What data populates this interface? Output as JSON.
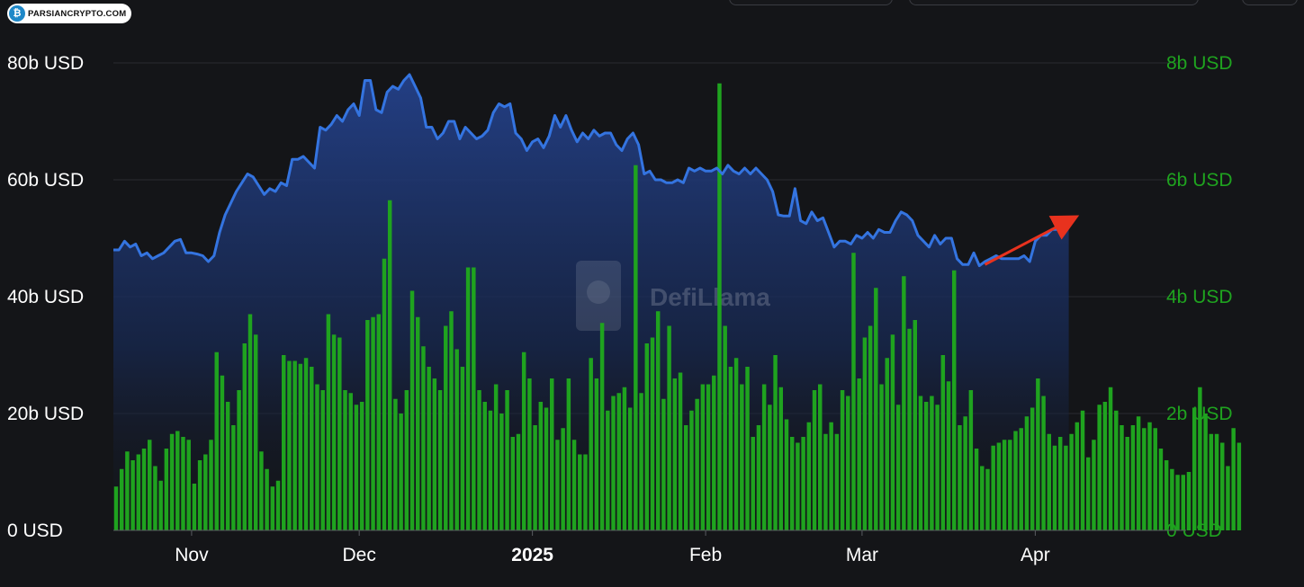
{
  "brand": {
    "logo_text": "PARSIANCRYPTO.COM",
    "watermark": "DefiLlama"
  },
  "chart_data": {
    "type": "bar+area",
    "title": "",
    "y_left": {
      "ticks": [
        "0 USD",
        "20b USD",
        "40b USD",
        "60b USD",
        "80b USD"
      ],
      "range": [
        0,
        80
      ],
      "unit": "billion USD",
      "color": "#ffffff"
    },
    "y_right": {
      "ticks": [
        "0 USD",
        "2b USD",
        "4b USD",
        "6b USD",
        "8b USD"
      ],
      "range": [
        0,
        8
      ],
      "unit": "billion USD",
      "color": "#1fa31f"
    },
    "x_ticks": [
      {
        "label": "Nov",
        "bold": false,
        "day": 14
      },
      {
        "label": "Dec",
        "bold": false,
        "day": 44
      },
      {
        "label": "2025",
        "bold": true,
        "day": 75
      },
      {
        "label": "Feb",
        "bold": false,
        "day": 106
      },
      {
        "label": "Mar",
        "bold": false,
        "day": 134
      },
      {
        "label": "Apr",
        "bold": false,
        "day": 165
      }
    ],
    "x_range_days": [
      0,
      192
    ],
    "line_series": {
      "axis": "left",
      "color": "#3474e0",
      "fill": "gradient-blue",
      "points": [
        [
          0,
          48
        ],
        [
          1,
          48
        ],
        [
          2,
          49.5
        ],
        [
          3,
          48.5
        ],
        [
          4,
          49
        ],
        [
          5,
          47
        ],
        [
          6,
          47.5
        ],
        [
          7,
          46.5
        ],
        [
          8,
          47
        ],
        [
          9,
          47.5
        ],
        [
          10,
          48.5
        ],
        [
          11,
          49.5
        ],
        [
          12,
          49.8
        ],
        [
          13,
          47.5
        ],
        [
          14,
          47.5
        ],
        [
          15,
          47.3
        ],
        [
          16,
          47
        ],
        [
          17,
          46
        ],
        [
          18,
          47
        ],
        [
          19,
          51
        ],
        [
          20,
          54
        ],
        [
          21,
          56
        ],
        [
          22,
          58
        ],
        [
          23,
          59.5
        ],
        [
          24,
          61
        ],
        [
          25,
          60.5
        ],
        [
          26,
          59
        ],
        [
          27,
          57.5
        ],
        [
          28,
          58.5
        ],
        [
          29,
          58
        ],
        [
          30,
          59.5
        ],
        [
          31,
          59
        ],
        [
          32,
          63.5
        ],
        [
          33,
          63.5
        ],
        [
          34,
          64
        ],
        [
          35,
          63
        ],
        [
          36,
          62
        ],
        [
          37,
          69
        ],
        [
          38,
          68.5
        ],
        [
          39,
          69.5
        ],
        [
          40,
          71
        ],
        [
          41,
          70
        ],
        [
          42,
          72
        ],
        [
          43,
          73
        ],
        [
          44,
          71
        ],
        [
          45,
          77
        ],
        [
          46,
          77
        ],
        [
          47,
          72
        ],
        [
          48,
          71.5
        ],
        [
          49,
          75
        ],
        [
          50,
          76
        ],
        [
          51,
          75.5
        ],
        [
          52,
          77
        ],
        [
          53,
          78
        ],
        [
          54,
          76
        ],
        [
          55,
          74
        ],
        [
          56,
          69
        ],
        [
          57,
          69
        ],
        [
          58,
          67
        ],
        [
          59,
          68
        ],
        [
          60,
          70
        ],
        [
          61,
          70
        ],
        [
          62,
          67
        ],
        [
          63,
          69
        ],
        [
          64,
          68
        ],
        [
          65,
          67
        ],
        [
          66,
          67.5
        ],
        [
          67,
          68.5
        ],
        [
          68,
          71.5
        ],
        [
          69,
          73
        ],
        [
          70,
          72.5
        ],
        [
          71,
          73
        ],
        [
          72,
          68
        ],
        [
          73,
          67
        ],
        [
          74,
          65
        ],
        [
          75,
          66.5
        ],
        [
          76,
          67
        ],
        [
          77,
          65.5
        ],
        [
          78,
          67.5
        ],
        [
          79,
          71
        ],
        [
          80,
          69
        ],
        [
          81,
          71
        ],
        [
          82,
          68.5
        ],
        [
          83,
          66.5
        ],
        [
          84,
          68
        ],
        [
          85,
          67
        ],
        [
          86,
          68.5
        ],
        [
          87,
          67.5
        ],
        [
          88,
          68
        ],
        [
          89,
          68
        ],
        [
          90,
          66
        ],
        [
          91,
          65
        ],
        [
          92,
          67
        ],
        [
          93,
          68
        ],
        [
          94,
          66
        ],
        [
          95,
          61
        ],
        [
          96,
          61.5
        ],
        [
          97,
          60
        ],
        [
          98,
          60
        ],
        [
          99,
          59.5
        ],
        [
          100,
          59.5
        ],
        [
          101,
          60
        ],
        [
          102,
          59.5
        ],
        [
          103,
          62
        ],
        [
          104,
          61.5
        ],
        [
          105,
          62
        ],
        [
          106,
          61.5
        ],
        [
          107,
          61.5
        ],
        [
          108,
          62
        ],
        [
          109,
          61
        ],
        [
          110,
          62.5
        ],
        [
          111,
          61.5
        ],
        [
          112,
          61
        ],
        [
          113,
          62
        ],
        [
          114,
          61
        ],
        [
          115,
          62
        ],
        [
          116,
          61
        ],
        [
          117,
          60
        ],
        [
          118,
          58
        ],
        [
          119,
          54
        ],
        [
          120,
          53.8
        ],
        [
          121,
          53.8
        ],
        [
          122,
          58.5
        ],
        [
          123,
          53
        ],
        [
          124,
          52.5
        ],
        [
          125,
          54.5
        ],
        [
          126,
          53
        ],
        [
          127,
          53.5
        ],
        [
          128,
          51
        ],
        [
          129,
          48.5
        ],
        [
          130,
          49.5
        ],
        [
          131,
          49.5
        ],
        [
          132,
          49
        ],
        [
          133,
          50.5
        ],
        [
          134,
          50
        ],
        [
          135,
          51
        ],
        [
          136,
          50
        ],
        [
          137,
          51.5
        ],
        [
          138,
          51
        ],
        [
          139,
          51
        ],
        [
          140,
          53
        ],
        [
          141,
          54.5
        ],
        [
          142,
          54
        ],
        [
          143,
          53
        ],
        [
          144,
          50.5
        ],
        [
          145,
          49.5
        ],
        [
          146,
          48.5
        ],
        [
          147,
          50.5
        ],
        [
          148,
          49
        ],
        [
          149,
          50
        ],
        [
          150,
          50
        ],
        [
          151,
          46.5
        ],
        [
          152,
          45.5
        ],
        [
          153,
          45.5
        ],
        [
          154,
          47.5
        ],
        [
          155,
          45.3
        ],
        [
          156,
          46
        ],
        [
          157,
          46.5
        ],
        [
          158,
          47
        ],
        [
          159,
          46.5
        ],
        [
          160,
          46.5
        ],
        [
          161,
          46.5
        ],
        [
          162,
          46.5
        ],
        [
          163,
          47
        ],
        [
          164,
          46
        ],
        [
          165,
          49.5
        ],
        [
          166,
          50.5
        ],
        [
          167,
          50.5
        ],
        [
          168,
          51.5
        ],
        [
          169,
          51.5
        ],
        [
          170,
          52.5
        ],
        [
          171,
          52
        ]
      ]
    },
    "bar_series": {
      "axis": "right",
      "color": "#1fa31f",
      "values": [
        0.75,
        1.05,
        1.35,
        1.2,
        1.3,
        1.4,
        1.55,
        1.1,
        0.85,
        1.4,
        1.65,
        1.7,
        1.6,
        1.55,
        0.8,
        1.2,
        1.3,
        1.55,
        3.05,
        2.65,
        2.2,
        1.8,
        2.4,
        3.2,
        3.7,
        3.35,
        1.35,
        1.05,
        0.75,
        0.85,
        3.0,
        2.9,
        2.9,
        2.85,
        2.95,
        2.8,
        2.5,
        2.4,
        3.7,
        3.35,
        3.3,
        2.4,
        2.35,
        2.15,
        2.2,
        3.6,
        3.65,
        3.7,
        4.65,
        5.65,
        2.25,
        2.0,
        2.4,
        4.1,
        3.65,
        3.15,
        2.8,
        2.6,
        2.4,
        3.5,
        3.75,
        3.1,
        2.8,
        4.5,
        4.5,
        2.4,
        2.2,
        2.05,
        2.5,
        2.0,
        2.4,
        1.6,
        1.65,
        3.05,
        2.6,
        1.8,
        2.2,
        2.1,
        2.6,
        1.55,
        1.75,
        2.6,
        1.55,
        1.3,
        1.3,
        2.95,
        2.6,
        3.55,
        2.05,
        2.3,
        2.35,
        2.45,
        2.1,
        6.25,
        2.35,
        3.2,
        3.3,
        3.75,
        2.25,
        3.5,
        2.6,
        2.7,
        1.8,
        2.05,
        2.25,
        2.5,
        2.5,
        2.65,
        7.65,
        3.5,
        2.8,
        2.95,
        2.5,
        2.8,
        1.6,
        1.8,
        2.5,
        2.15,
        3.0,
        2.45,
        1.9,
        1.6,
        1.5,
        1.6,
        1.85,
        2.4,
        2.5,
        1.65,
        1.85,
        1.65,
        2.4,
        2.3,
        4.75,
        2.6,
        3.3,
        3.5,
        4.15,
        2.5,
        2.95,
        3.35,
        2.15,
        4.35,
        3.45,
        3.6,
        2.3,
        2.2,
        2.3,
        2.15,
        3.0,
        2.55,
        4.45,
        1.8,
        1.95,
        2.4,
        1.4,
        1.1,
        1.05,
        1.45,
        1.5,
        1.55,
        1.55,
        1.7,
        1.75,
        1.95,
        2.1,
        2.6,
        2.3,
        1.65,
        1.45,
        1.6,
        1.45,
        1.65,
        1.85,
        2.05,
        1.25,
        1.55,
        2.15,
        2.2,
        2.45,
        2.05,
        1.8,
        1.6,
        1.8,
        1.95,
        1.75,
        1.85,
        1.75,
        1.4,
        1.2,
        1.05,
        0.95,
        0.95,
        1.0,
        2.1,
        2.45,
        2.0,
        1.65,
        1.65,
        1.5,
        1.1,
        1.75,
        1.5
      ]
    },
    "annotation": {
      "type": "arrow",
      "color": "#e8321e",
      "from": [
        156,
        45.5
      ],
      "to": [
        172,
        53.5
      ]
    }
  }
}
